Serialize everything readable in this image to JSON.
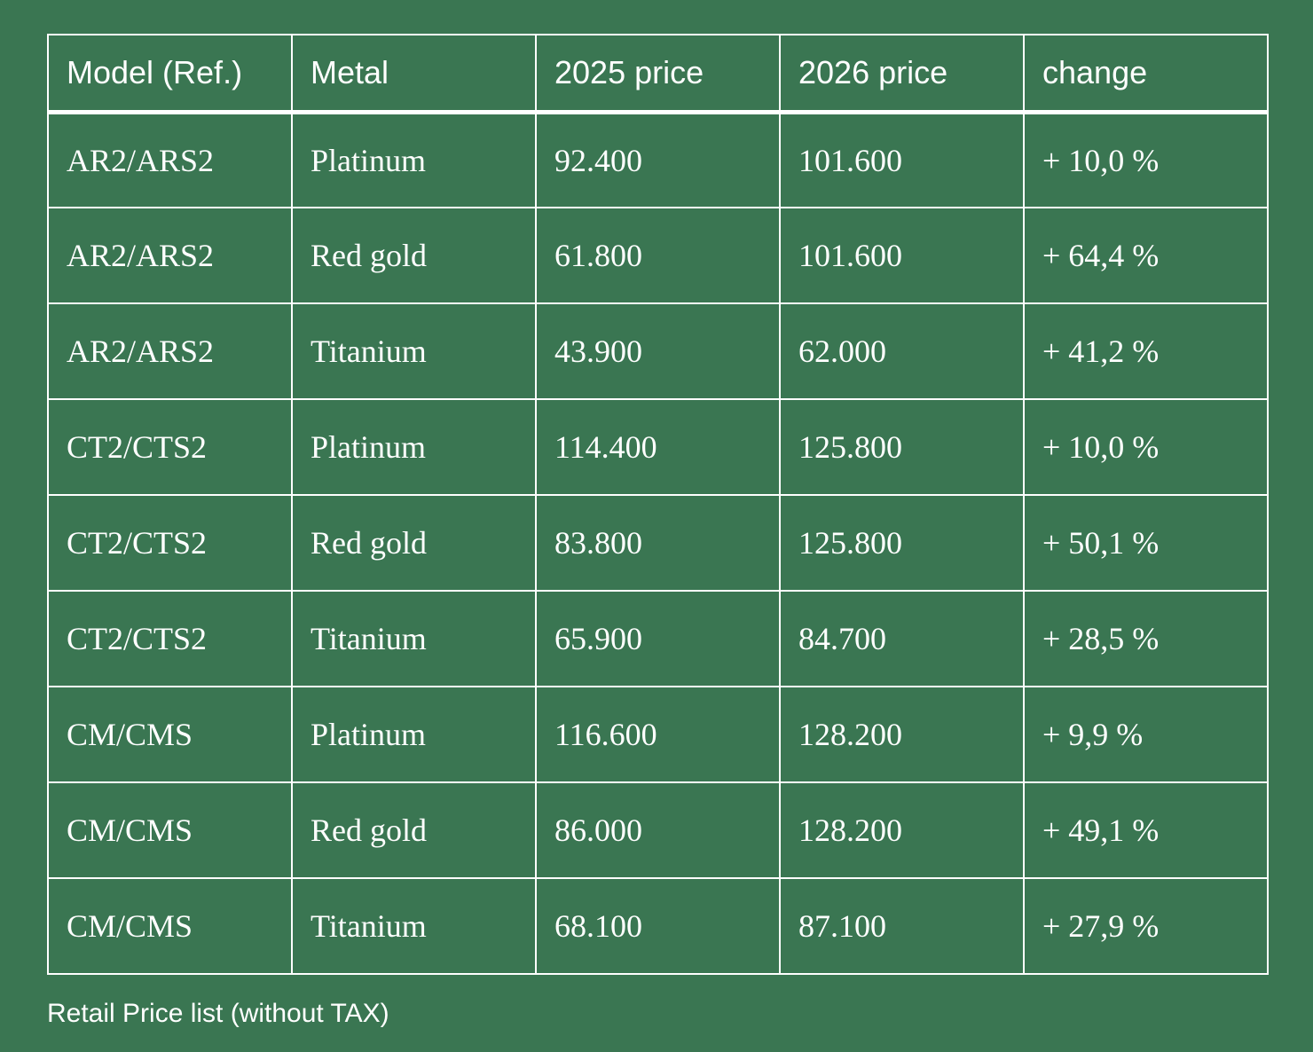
{
  "colors": {
    "background": "#3a7652",
    "text": "#ffffff",
    "border": "#ffffff"
  },
  "table": {
    "headers": [
      "Model (Ref.)",
      "Metal",
      "2025 price",
      "2026 price",
      "change"
    ],
    "rows": [
      [
        "AR2/ARS2",
        "Platinum",
        "92.400",
        "101.600",
        "+ 10,0 %"
      ],
      [
        "AR2/ARS2",
        "Red gold",
        "61.800",
        "101.600",
        "+ 64,4 %"
      ],
      [
        "AR2/ARS2",
        "Titanium",
        "43.900",
        "62.000",
        "+ 41,2 %"
      ],
      [
        "CT2/CTS2",
        "Platinum",
        "114.400",
        "125.800",
        "+ 10,0 %"
      ],
      [
        "CT2/CTS2",
        "Red gold",
        "83.800",
        "125.800",
        "+ 50,1 %"
      ],
      [
        "CT2/CTS2",
        "Titanium",
        "65.900",
        "84.700",
        "+ 28,5 %"
      ],
      [
        "CM/CMS",
        "Platinum",
        "116.600",
        "128.200",
        "+ 9,9 %"
      ],
      [
        "CM/CMS",
        "Red gold",
        "86.000",
        "128.200",
        "+ 49,1 %"
      ],
      [
        "CM/CMS",
        "Titanium",
        "68.100",
        "87.100",
        "+ 27,9 %"
      ]
    ]
  },
  "caption": "Retail Price list (without TAX)"
}
